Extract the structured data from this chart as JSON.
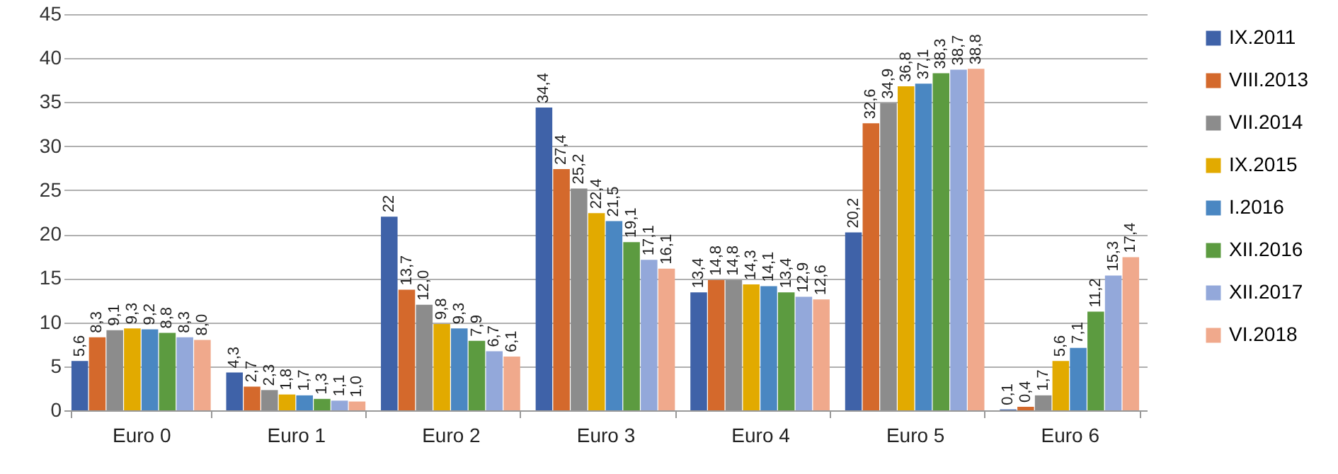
{
  "chart_data": {
    "type": "bar",
    "categories": [
      "Euro 0",
      "Euro 1",
      "Euro 2",
      "Euro 3",
      "Euro 4",
      "Euro 5",
      "Euro 6"
    ],
    "series": [
      {
        "name": "IX.2011",
        "color": "#3f62a8",
        "values": [
          5.6,
          4.3,
          22,
          34.4,
          13.4,
          20.2,
          0.1
        ],
        "value_labels": [
          "5,6",
          "4,3",
          "22",
          "34,4",
          "13,4",
          "20,2",
          "0,1"
        ]
      },
      {
        "name": "VIII.2013",
        "color": "#d4692c",
        "values": [
          8.3,
          2.7,
          13.7,
          27.4,
          14.8,
          32.6,
          0.4
        ],
        "value_labels": [
          "8,3",
          "2,7",
          "13,7",
          "27,4",
          "14,8",
          "32,6",
          "0,4"
        ]
      },
      {
        "name": "VII.2014",
        "color": "#8c8c8c",
        "values": [
          9.1,
          2.3,
          12.0,
          25.2,
          14.8,
          34.9,
          1.7
        ],
        "value_labels": [
          "9,1",
          "2,3",
          "12,0",
          "25,2",
          "14,8",
          "34,9",
          "1,7"
        ]
      },
      {
        "name": "IX.2015",
        "color": "#e2aa00",
        "values": [
          9.3,
          1.8,
          9.8,
          22.4,
          14.3,
          36.8,
          5.6
        ],
        "value_labels": [
          "9,3",
          "1,8",
          "9,8",
          "22,4",
          "14,3",
          "36,8",
          "5,6"
        ]
      },
      {
        "name": "I.2016",
        "color": "#4a87c2",
        "values": [
          9.2,
          1.7,
          9.3,
          21.5,
          14.1,
          37.1,
          7.1
        ],
        "value_labels": [
          "9,2",
          "1,7",
          "9,3",
          "21,5",
          "14,1",
          "37,1",
          "7,1"
        ]
      },
      {
        "name": "XII.2016",
        "color": "#5c9b40",
        "values": [
          8.8,
          1.3,
          7.9,
          19.1,
          13.4,
          38.3,
          11.2
        ],
        "value_labels": [
          "8,8",
          "1,3",
          "7,9",
          "19,1",
          "13,4",
          "38,3",
          "11,2"
        ]
      },
      {
        "name": "XII.2017",
        "color": "#93a8da",
        "values": [
          8.3,
          1.1,
          6.7,
          17.1,
          12.9,
          38.7,
          15.3
        ],
        "value_labels": [
          "8,3",
          "1,1",
          "6,7",
          "17,1",
          "12,9",
          "38,7",
          "15,3"
        ]
      },
      {
        "name": "VI.2018",
        "color": "#f0a98c",
        "values": [
          8.0,
          1.0,
          6.1,
          16.1,
          12.6,
          38.8,
          17.4
        ],
        "value_labels": [
          "8,0",
          "1,0",
          "6,1",
          "16,1",
          "12,6",
          "38,8",
          "17,4"
        ]
      }
    ],
    "ylim": [
      0,
      45
    ],
    "yticks": [
      0,
      5,
      10,
      15,
      20,
      25,
      30,
      35,
      40,
      45
    ],
    "grid": "y",
    "legend": "right"
  }
}
